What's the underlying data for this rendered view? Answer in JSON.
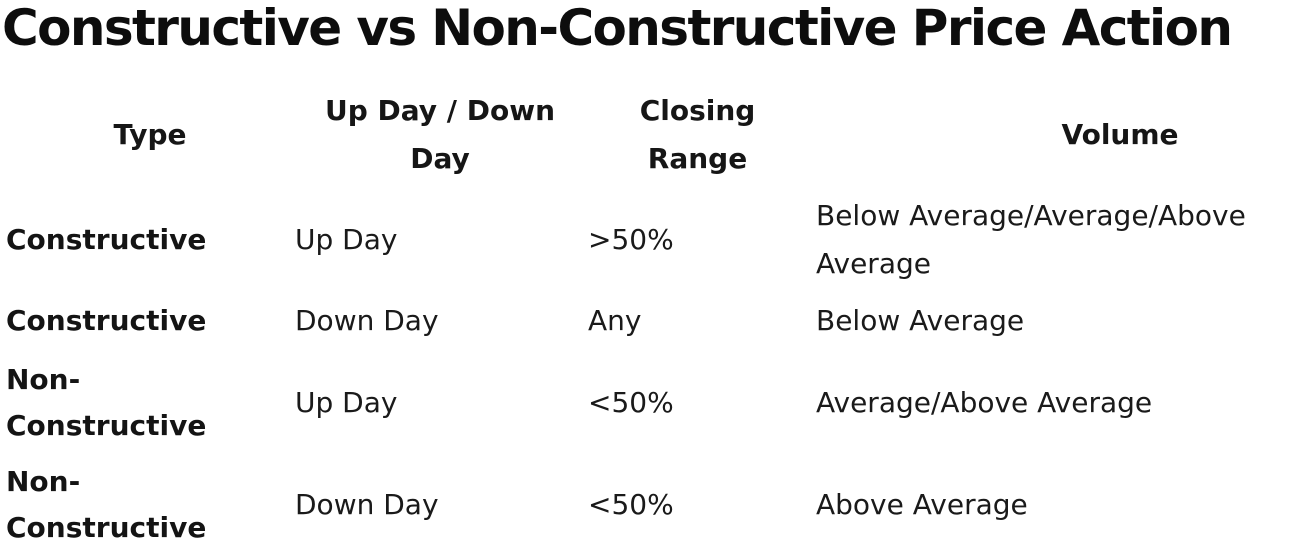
{
  "title": "Constructive vs Non-Constructive Price Action",
  "table": {
    "headers": {
      "type": "Type",
      "direction": "Up Day / Down Day",
      "closing_range": "Closing Range",
      "volume": "Volume"
    },
    "rows": [
      {
        "type": "Constructive",
        "direction": "Up Day",
        "closing_range": ">50%",
        "volume": "Below Average/Average/Above Average"
      },
      {
        "type": "Constructive",
        "direction": "Down Day",
        "closing_range": "Any",
        "volume": "Below Average"
      },
      {
        "type": "Non-Constructive",
        "direction": "Up Day",
        "closing_range": "<50%",
        "volume": "Average/Above Average"
      },
      {
        "type": "Non-Constructive",
        "direction": "Down Day",
        "closing_range": "<50%",
        "volume": "Above Average"
      }
    ]
  }
}
